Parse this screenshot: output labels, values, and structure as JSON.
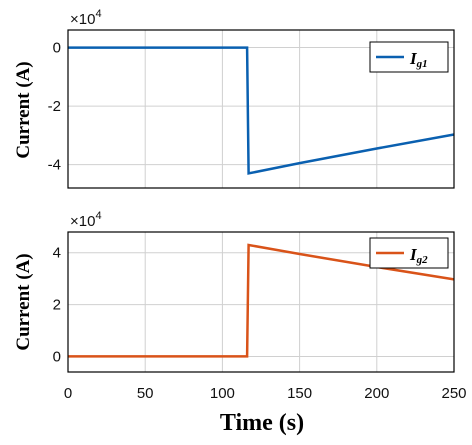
{
  "chart_data": [
    {
      "type": "line",
      "xlabel": "",
      "ylabel": "Current (A)",
      "multiplier": "×10",
      "multiplier_exp": "4",
      "xlim": [
        0,
        250
      ],
      "ylim": [
        -4.8,
        0.6
      ],
      "x_ticks": [
        "0",
        "50",
        "100",
        "150",
        "200",
        "250"
      ],
      "y_ticks": [
        0,
        -2,
        -4
      ],
      "y_tick_labels": [
        "0",
        "-2",
        "-4"
      ],
      "grid": true,
      "legend_position": "top-right",
      "series": [
        {
          "name": "I",
          "name_sub": "g1",
          "color": "#0a60b0",
          "points": [
            [
              0,
              0
            ],
            [
              116,
              0
            ],
            [
              116,
              0
            ],
            [
              117,
              -4.3
            ],
            [
              150,
              -3.95
            ],
            [
              200,
              -3.45
            ],
            [
              250,
              -2.97
            ]
          ]
        }
      ]
    },
    {
      "type": "line",
      "xlabel": "Time (s)",
      "ylabel": "Current (A)",
      "multiplier": "×10",
      "multiplier_exp": "4",
      "xlim": [
        0,
        250
      ],
      "ylim": [
        -0.6,
        4.8
      ],
      "x_ticks": [
        "0",
        "50",
        "100",
        "150",
        "200",
        "250"
      ],
      "y_ticks": [
        0,
        2,
        4
      ],
      "y_tick_labels": [
        "0",
        "2",
        "4"
      ],
      "grid": true,
      "legend_position": "top-right",
      "series": [
        {
          "name": "I",
          "name_sub": "g2",
          "color": "#d95319",
          "points": [
            [
              0,
              0
            ],
            [
              116,
              0
            ],
            [
              116,
              0
            ],
            [
              117,
              4.3
            ],
            [
              150,
              3.95
            ],
            [
              200,
              3.45
            ],
            [
              250,
              2.97
            ]
          ]
        }
      ]
    }
  ]
}
